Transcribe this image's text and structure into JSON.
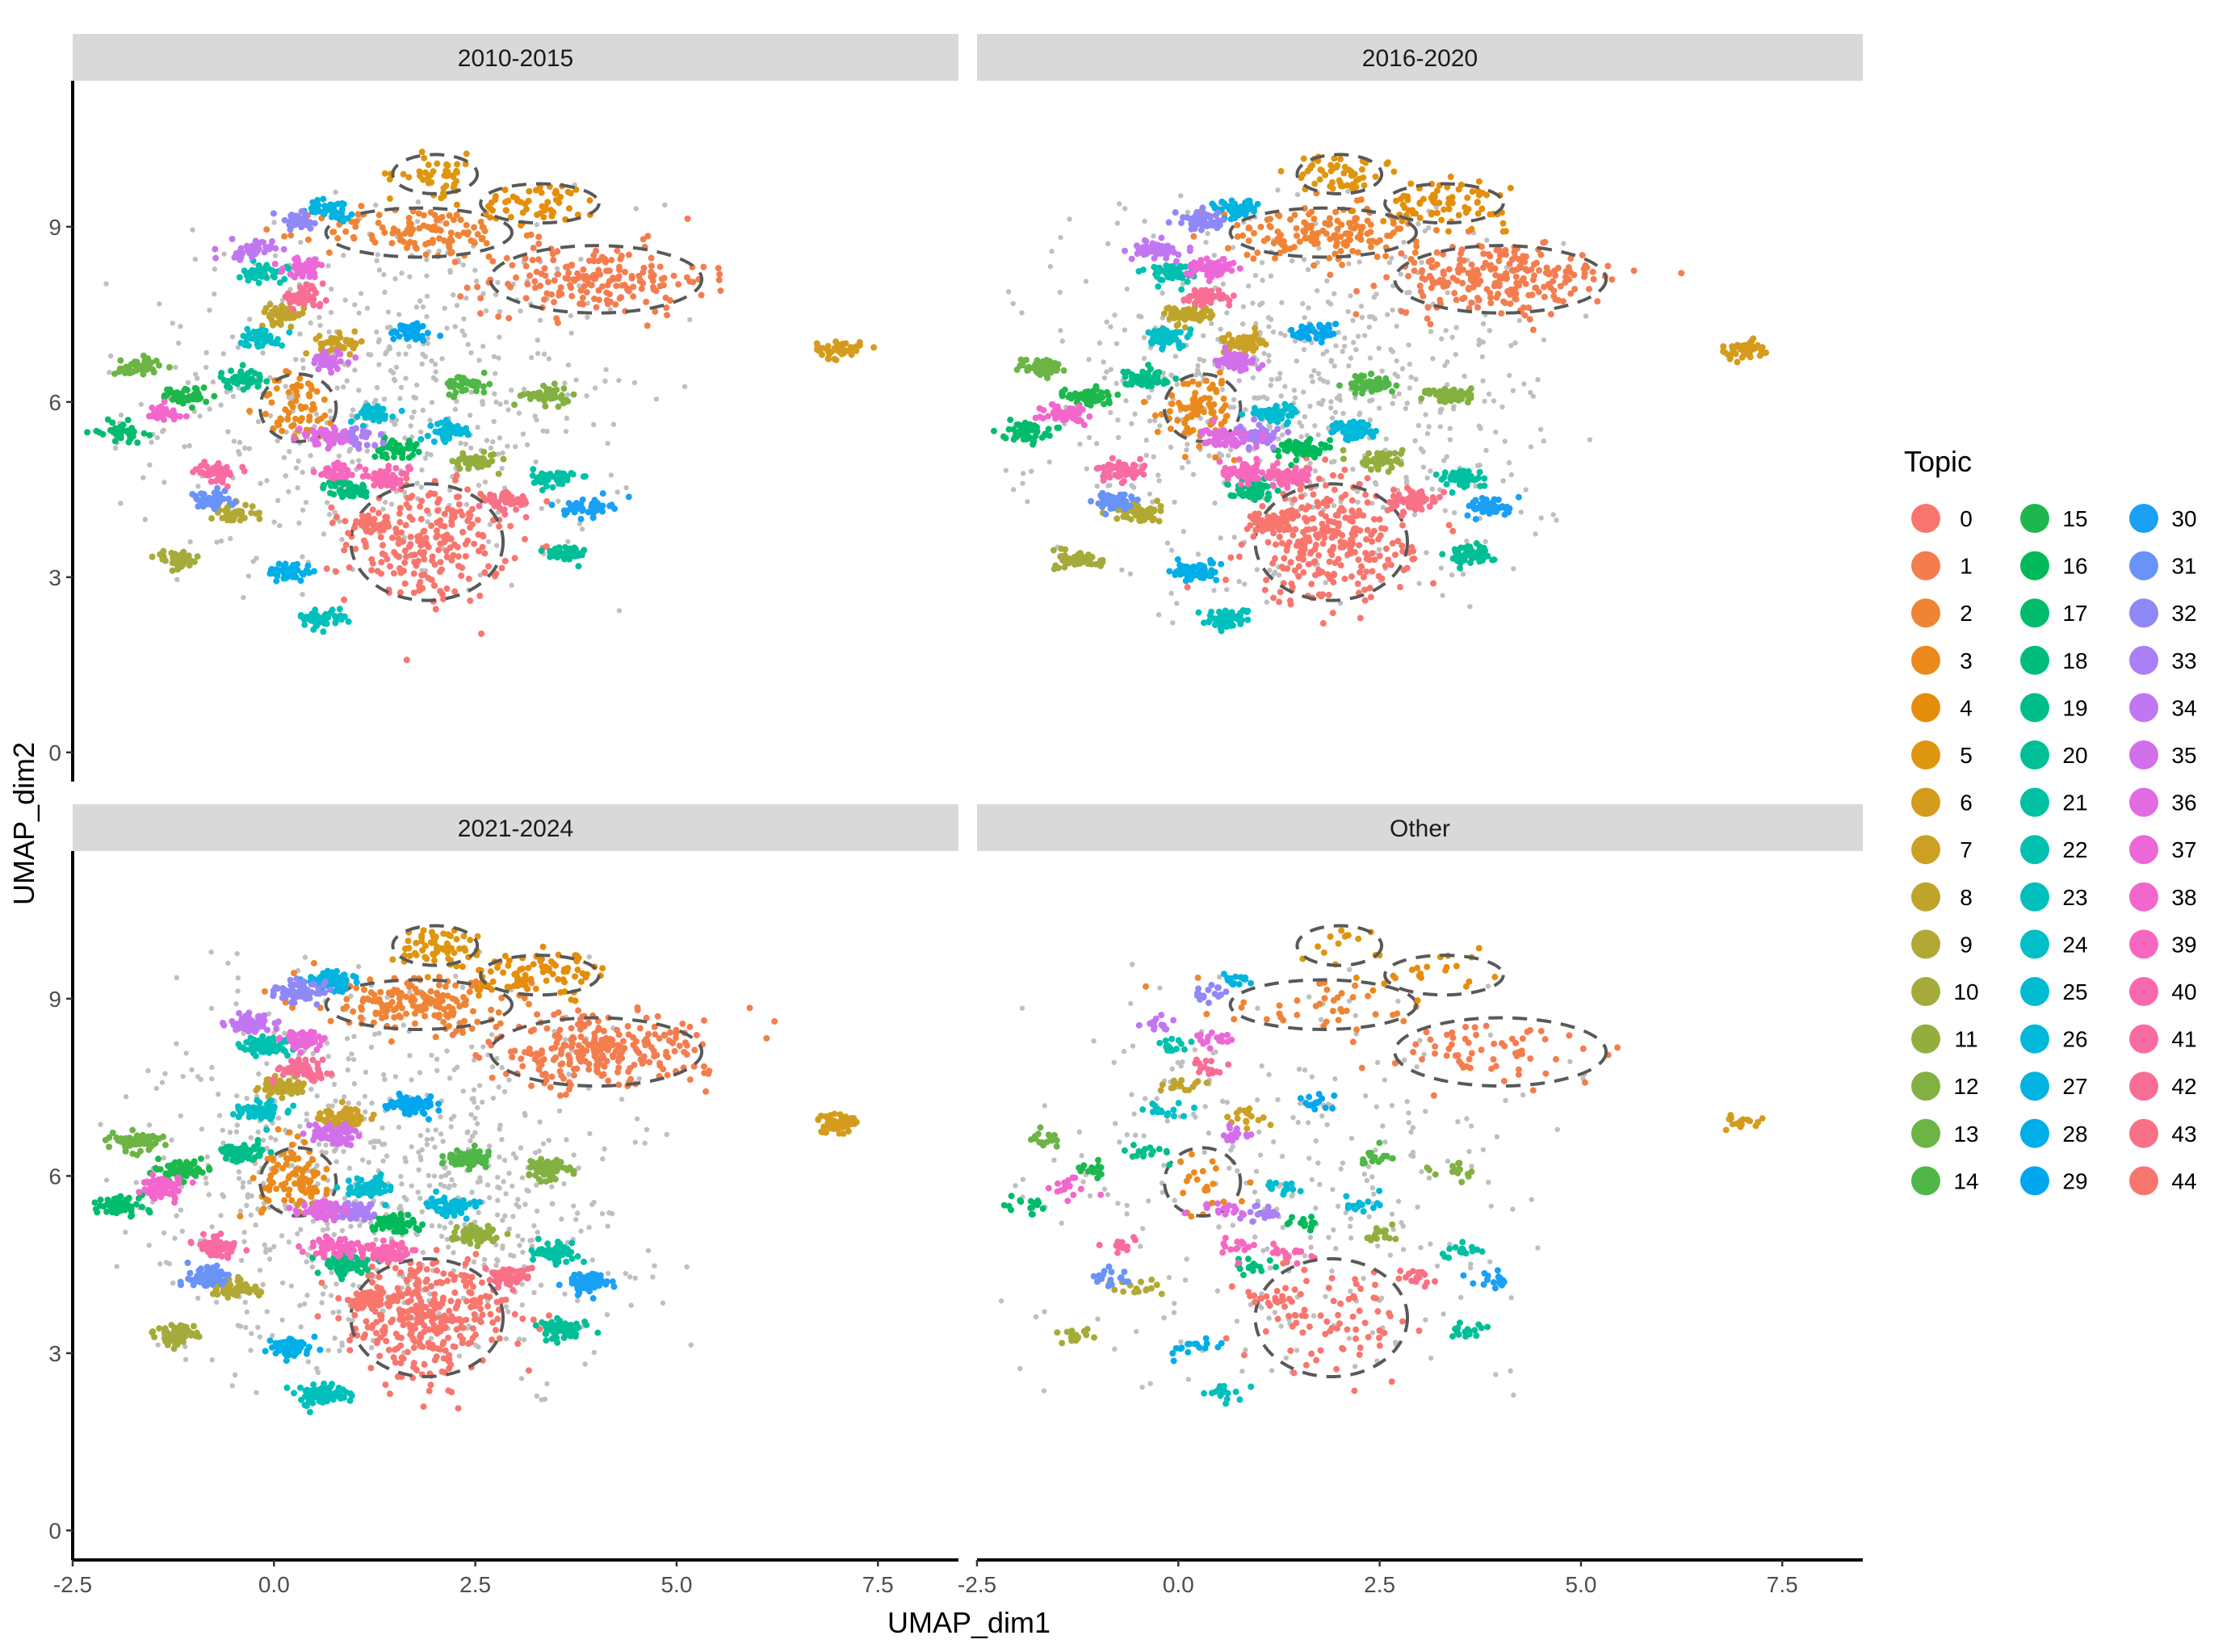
{
  "chart_data": {
    "type": "scatter",
    "xlabel": "UMAP_dim1",
    "ylabel": "UMAP_dim2",
    "xlim": [
      -2.5,
      8.5
    ],
    "ylim": [
      -0.5,
      11.5
    ],
    "x_ticks": [
      -2.5,
      0.0,
      2.5,
      5.0,
      7.5
    ],
    "x_tick_labels": [
      "-2.5",
      "0.0",
      "2.5",
      "5.0",
      "7.5"
    ],
    "y_ticks": [
      0,
      3,
      6,
      9
    ],
    "y_tick_labels": [
      "0",
      "3",
      "6",
      "9"
    ],
    "legend_title": "Topic",
    "legend_position": "right",
    "background_color": "#bfbfbf",
    "topics": [
      "0",
      "1",
      "2",
      "3",
      "4",
      "5",
      "6",
      "7",
      "8",
      "9",
      "10",
      "11",
      "12",
      "13",
      "14",
      "15",
      "16",
      "17",
      "18",
      "19",
      "20",
      "21",
      "22",
      "23",
      "24",
      "25",
      "26",
      "27",
      "28",
      "29",
      "30",
      "31",
      "32",
      "33",
      "34",
      "35",
      "36",
      "37",
      "38",
      "39",
      "40",
      "41",
      "42",
      "43",
      "44"
    ],
    "topic_colors": [
      "#F8766D",
      "#F47D4F",
      "#F08435",
      "#EB8A1C",
      "#E58E0A",
      "#DE960F",
      "#D59B1C",
      "#CBA024",
      "#BFA42C",
      "#B2A834",
      "#A4AB3A",
      "#94AE3E",
      "#82B141",
      "#6CB444",
      "#4FB747",
      "#1DB84D",
      "#00BA5A",
      "#00BC6C",
      "#00BD7C",
      "#00BE8A",
      "#00BF97",
      "#00C0A4",
      "#00C1B0",
      "#00C0BC",
      "#00BFC6",
      "#00BCD0",
      "#00B8D9",
      "#00B3E1",
      "#00AEE8",
      "#00A7EF",
      "#1AA0F5",
      "#6993F7",
      "#8F88F7",
      "#AB7FF5",
      "#C177F1",
      "#D270EB",
      "#E16BE3",
      "#EC68D8",
      "#F367CC",
      "#F767BF",
      "#F968B1",
      "#F96BA3",
      "#F86E95",
      "#F87186",
      "#F8766D"
    ],
    "centroids": [
      {
        "topic": 0,
        "x": 1.9,
        "y": 3.6,
        "rx": 0.9,
        "ry": 0.95
      },
      {
        "topic": 1,
        "x": 4.0,
        "y": 8.1,
        "rx": 1.25,
        "ry": 0.55
      },
      {
        "topic": 2,
        "x": 1.8,
        "y": 8.9,
        "rx": 1.1,
        "ry": 0.4
      },
      {
        "topic": 3,
        "x": 0.3,
        "y": 5.9,
        "rx": 0.45,
        "ry": 0.55
      },
      {
        "topic": 4,
        "x": 3.3,
        "y": 9.4,
        "rx": 0.7,
        "ry": 0.32
      },
      {
        "topic": 5,
        "x": 2.0,
        "y": 9.9,
        "rx": 0.5,
        "ry": 0.32
      },
      {
        "topic": 6,
        "x": 7.0,
        "y": 6.9,
        "rx": 0.0,
        "ry": 0.0
      },
      {
        "topic": 7,
        "x": 0.85,
        "y": 7.0,
        "rx": 0.0,
        "ry": 0.0
      },
      {
        "topic": 8,
        "x": 0.1,
        "y": 7.5,
        "rx": 0.0,
        "ry": 0.0
      },
      {
        "topic": 9,
        "x": -0.5,
        "y": 4.1,
        "rx": 0.0,
        "ry": 0.0
      },
      {
        "topic": 10,
        "x": -1.2,
        "y": 3.3,
        "rx": 0.0,
        "ry": 0.0
      },
      {
        "topic": 11,
        "x": 2.5,
        "y": 5.0,
        "rx": 0.0,
        "ry": 0.0
      },
      {
        "topic": 12,
        "x": 3.4,
        "y": 6.1,
        "rx": 0.0,
        "ry": 0.0
      },
      {
        "topic": 13,
        "x": -1.7,
        "y": 6.6,
        "rx": 0.0,
        "ry": 0.0
      },
      {
        "topic": 14,
        "x": 2.4,
        "y": 6.3,
        "rx": 0.0,
        "ry": 0.0
      },
      {
        "topic": 15,
        "x": -1.1,
        "y": 6.1,
        "rx": 0.0,
        "ry": 0.0
      },
      {
        "topic": 16,
        "x": 1.5,
        "y": 5.2,
        "rx": 0.0,
        "ry": 0.0
      },
      {
        "topic": 17,
        "x": -1.9,
        "y": 5.5,
        "rx": 0.0,
        "ry": 0.0
      },
      {
        "topic": 18,
        "x": 0.9,
        "y": 4.5,
        "rx": 0.0,
        "ry": 0.0
      },
      {
        "topic": 19,
        "x": -0.4,
        "y": 6.4,
        "rx": 0.0,
        "ry": 0.0
      },
      {
        "topic": 20,
        "x": 3.6,
        "y": 3.4,
        "rx": 0.0,
        "ry": 0.0
      },
      {
        "topic": 21,
        "x": 3.5,
        "y": 4.7,
        "rx": 0.0,
        "ry": 0.0
      },
      {
        "topic": 22,
        "x": -0.1,
        "y": 8.2,
        "rx": 0.0,
        "ry": 0.0
      },
      {
        "topic": 23,
        "x": 0.6,
        "y": 2.3,
        "rx": 0.0,
        "ry": 0.0
      },
      {
        "topic": 24,
        "x": -0.15,
        "y": 7.1,
        "rx": 0.0,
        "ry": 0.0
      },
      {
        "topic": 25,
        "x": 1.2,
        "y": 5.8,
        "rx": 0.0,
        "ry": 0.0
      },
      {
        "topic": 26,
        "x": 2.2,
        "y": 5.5,
        "rx": 0.0,
        "ry": 0.0
      },
      {
        "topic": 27,
        "x": 0.7,
        "y": 9.3,
        "rx": 0.0,
        "ry": 0.0
      },
      {
        "topic": 28,
        "x": 0.2,
        "y": 3.1,
        "rx": 0.0,
        "ry": 0.0
      },
      {
        "topic": 29,
        "x": 1.7,
        "y": 7.2,
        "rx": 0.0,
        "ry": 0.0
      },
      {
        "topic": 30,
        "x": 3.9,
        "y": 4.2,
        "rx": 0.0,
        "ry": 0.0
      },
      {
        "topic": 31,
        "x": -0.8,
        "y": 4.3,
        "rx": 0.0,
        "ry": 0.0
      },
      {
        "topic": 32,
        "x": 0.3,
        "y": 9.1,
        "rx": 0.0,
        "ry": 0.0
      },
      {
        "topic": 33,
        "x": 1.0,
        "y": 5.4,
        "rx": 0.0,
        "ry": 0.0
      },
      {
        "topic": 34,
        "x": -0.3,
        "y": 8.6,
        "rx": 0.0,
        "ry": 0.0
      },
      {
        "topic": 35,
        "x": 0.7,
        "y": 6.7,
        "rx": 0.0,
        "ry": 0.0
      },
      {
        "topic": 36,
        "x": 0.6,
        "y": 5.4,
        "rx": 0.0,
        "ry": 0.0
      },
      {
        "topic": 37,
        "x": 0.4,
        "y": 8.3,
        "rx": 0.0,
        "ry": 0.0
      },
      {
        "topic": 38,
        "x": -1.4,
        "y": 5.8,
        "rx": 0.0,
        "ry": 0.0
      },
      {
        "topic": 39,
        "x": 0.8,
        "y": 4.8,
        "rx": 0.0,
        "ry": 0.0
      },
      {
        "topic": 40,
        "x": 1.4,
        "y": 4.7,
        "rx": 0.0,
        "ry": 0.0
      },
      {
        "topic": 41,
        "x": -0.7,
        "y": 4.8,
        "rx": 0.0,
        "ry": 0.0
      },
      {
        "topic": 42,
        "x": 0.35,
        "y": 7.8,
        "rx": 0.0,
        "ry": 0.0
      },
      {
        "topic": 43,
        "x": 2.9,
        "y": 4.3,
        "rx": 0.0,
        "ry": 0.0
      },
      {
        "topic": 44,
        "x": 1.2,
        "y": 3.9,
        "rx": 0.0,
        "ry": 0.0
      }
    ],
    "panels": [
      {
        "label": "2010-2015",
        "density": 1.0,
        "background_points": 500
      },
      {
        "label": "2016-2020",
        "density": 1.3,
        "background_points": 650
      },
      {
        "label": "2021-2024",
        "density": 1.5,
        "background_points": 750
      },
      {
        "label": "Other",
        "density": 0.35,
        "background_points": 300
      }
    ]
  }
}
